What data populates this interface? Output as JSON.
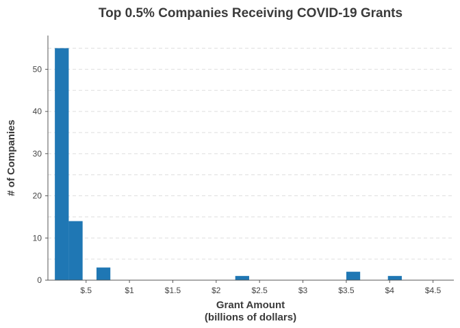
{
  "chart_data": {
    "type": "bar",
    "title": "Top 0.5% Companies Receiving COVID-19 Grants",
    "xlabel_line1": "Grant Amount",
    "xlabel_line2": "(billions of dollars)",
    "ylabel": "# of Companies",
    "x_ticks": [
      {
        "value": 0.5,
        "label": "$.5"
      },
      {
        "value": 1.0,
        "label": "$1"
      },
      {
        "value": 1.5,
        "label": "$1.5"
      },
      {
        "value": 2.0,
        "label": "$2"
      },
      {
        "value": 2.5,
        "label": "$2.5"
      },
      {
        "value": 3.0,
        "label": "$3"
      },
      {
        "value": 3.5,
        "label": "$3.5"
      },
      {
        "value": 4.0,
        "label": "$4"
      },
      {
        "value": 4.5,
        "label": "$4.5"
      }
    ],
    "y_ticks": [
      0,
      10,
      20,
      30,
      40,
      50
    ],
    "xlim": [
      0.06,
      4.74
    ],
    "ylim": [
      0,
      58
    ],
    "bin_width": 0.16,
    "bins": [
      {
        "x_start": 0.14,
        "count": 55
      },
      {
        "x_start": 0.3,
        "count": 14
      },
      {
        "x_start": 0.62,
        "count": 3
      },
      {
        "x_start": 2.22,
        "count": 1
      },
      {
        "x_start": 3.5,
        "count": 2
      },
      {
        "x_start": 3.98,
        "count": 1
      }
    ],
    "bar_color": "#1f77b4",
    "grid": "horizontal dashed"
  }
}
